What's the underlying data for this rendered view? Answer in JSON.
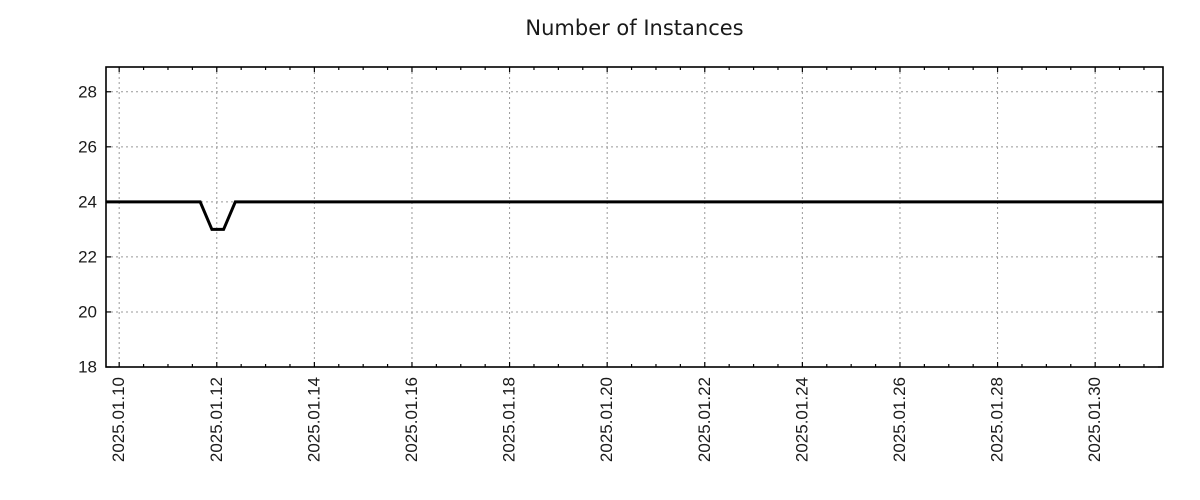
{
  "chart_data": {
    "type": "line",
    "title": "Number of Instances",
    "xlabel": "",
    "ylabel": "",
    "grid": {
      "show": true,
      "color": "#999999",
      "style": "dotted"
    },
    "legend": {
      "show": false
    },
    "x_axis": {
      "kind": "time",
      "unit": "day of January 2025 (fractional)",
      "min": 9.73,
      "max": 31.39,
      "minor_tick_step": 0.5,
      "major_ticks": [
        {
          "value": 10,
          "label": "2025.01.10"
        },
        {
          "value": 12,
          "label": "2025.01.12"
        },
        {
          "value": 14,
          "label": "2025.01.14"
        },
        {
          "value": 16,
          "label": "2025.01.16"
        },
        {
          "value": 18,
          "label": "2025.01.18"
        },
        {
          "value": 20,
          "label": "2025.01.20"
        },
        {
          "value": 22,
          "label": "2025.01.22"
        },
        {
          "value": 24,
          "label": "2025.01.24"
        },
        {
          "value": 26,
          "label": "2025.01.26"
        },
        {
          "value": 28,
          "label": "2025.01.28"
        },
        {
          "value": 30,
          "label": "2025.01.30"
        }
      ]
    },
    "y_axis": {
      "min": 18,
      "max": 28.9,
      "major_ticks": [
        {
          "value": 18,
          "label": "18"
        },
        {
          "value": 20,
          "label": "20"
        },
        {
          "value": 22,
          "label": "22"
        },
        {
          "value": 24,
          "label": "24"
        },
        {
          "value": 26,
          "label": "26"
        },
        {
          "value": 28,
          "label": "28"
        }
      ]
    },
    "series": [
      {
        "name": "Number of Instances",
        "color": "#000000",
        "line_width": 3,
        "points": [
          [
            9.73,
            24
          ],
          [
            11.66,
            24
          ],
          [
            11.9,
            23
          ],
          [
            12.14,
            23
          ],
          [
            12.38,
            24
          ],
          [
            31.39,
            24
          ]
        ]
      }
    ]
  },
  "colors": {
    "text": "#1a1a1a",
    "axis": "#000000",
    "grid": "#999999",
    "background": "#ffffff"
  }
}
